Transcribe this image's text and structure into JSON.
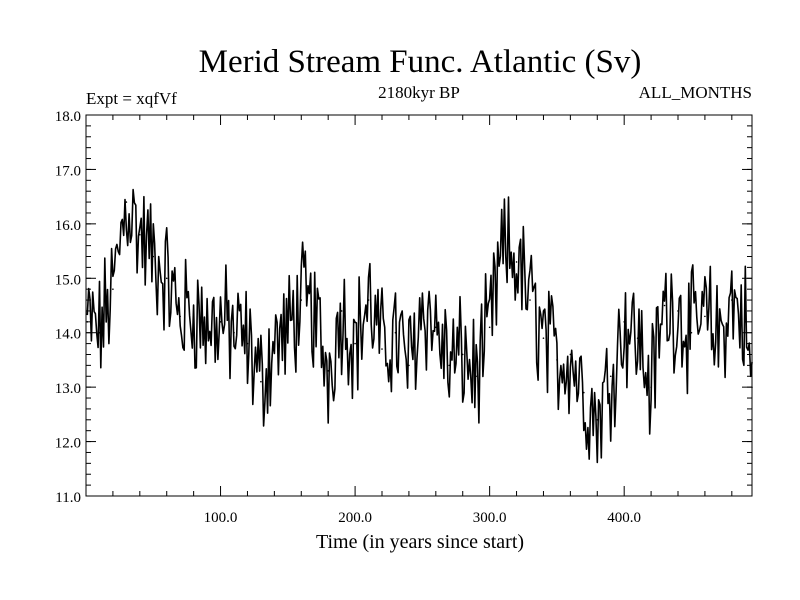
{
  "chart_data": {
    "type": "line",
    "title": "Merid Stream Func. Atlantic (Sv)",
    "subtitle_left": "Expt = xqfVf",
    "subtitle_center": "2180kyr BP",
    "subtitle_right": "ALL_MONTHS",
    "xlabel": "Time (in years since start)",
    "ylabel": "",
    "xlim": [
      0,
      495
    ],
    "ylim": [
      11.0,
      18.0
    ],
    "x_ticks": [
      100,
      200,
      300,
      400
    ],
    "x_tick_labels": [
      "100.0",
      "200.0",
      "300.0",
      "400.0"
    ],
    "y_ticks": [
      11,
      12,
      13,
      14,
      15,
      16,
      17,
      18
    ],
    "y_tick_labels": [
      "11.0",
      "12.0",
      "13.0",
      "14.0",
      "15.0",
      "16.0",
      "17.0",
      "18.0"
    ],
    "series": [
      {
        "name": "Merid Stream Func. Atlantic",
        "x": [
          1,
          10,
          20,
          30,
          40,
          50,
          60,
          70,
          80,
          90,
          100,
          110,
          120,
          130,
          140,
          150,
          160,
          170,
          180,
          190,
          200,
          210,
          220,
          230,
          240,
          250,
          260,
          270,
          280,
          290,
          300,
          310,
          320,
          330,
          340,
          350,
          360,
          370,
          380,
          390,
          400,
          410,
          420,
          430,
          440,
          450,
          460,
          470,
          480,
          490,
          495
        ],
        "values": [
          14.2,
          14.0,
          14.8,
          16.4,
          15.8,
          15.4,
          15.0,
          14.3,
          14.4,
          14.1,
          14.2,
          14.0,
          13.8,
          13.1,
          13.8,
          14.0,
          14.6,
          14.3,
          13.3,
          14.4,
          13.8,
          14.6,
          13.7,
          14.0,
          13.4,
          14.5,
          14.1,
          13.4,
          13.6,
          13.2,
          14.1,
          15.5,
          15.3,
          14.6,
          13.9,
          13.5,
          13.6,
          12.9,
          12.4,
          13.2,
          14.2,
          13.9,
          13.0,
          14.5,
          14.4,
          14.0,
          14.3,
          13.9,
          14.6,
          14.2,
          13.0
        ],
        "color": "#000000"
      }
    ]
  }
}
